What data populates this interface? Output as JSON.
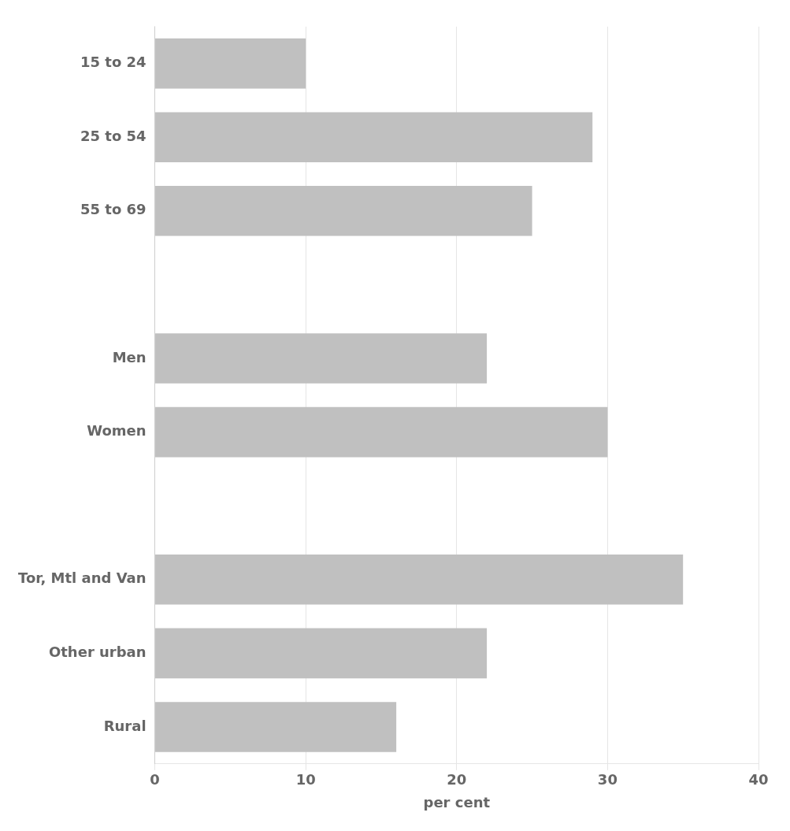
{
  "chart_data": {
    "type": "bar",
    "orientation": "horizontal",
    "categories": [
      "Rural",
      "Other urban",
      "Tor, Mtl and Van",
      null,
      "Women",
      "Men",
      null,
      "55 to 69",
      "25 to 54",
      "15 to 24"
    ],
    "values": [
      16,
      22,
      35,
      null,
      30,
      22,
      null,
      25,
      29,
      10
    ],
    "color": "#c0c0c0",
    "xlabel": "per cent",
    "xlim": [
      0,
      40
    ],
    "xticks": [
      0,
      10,
      20,
      30,
      40
    ],
    "grid": true
  }
}
